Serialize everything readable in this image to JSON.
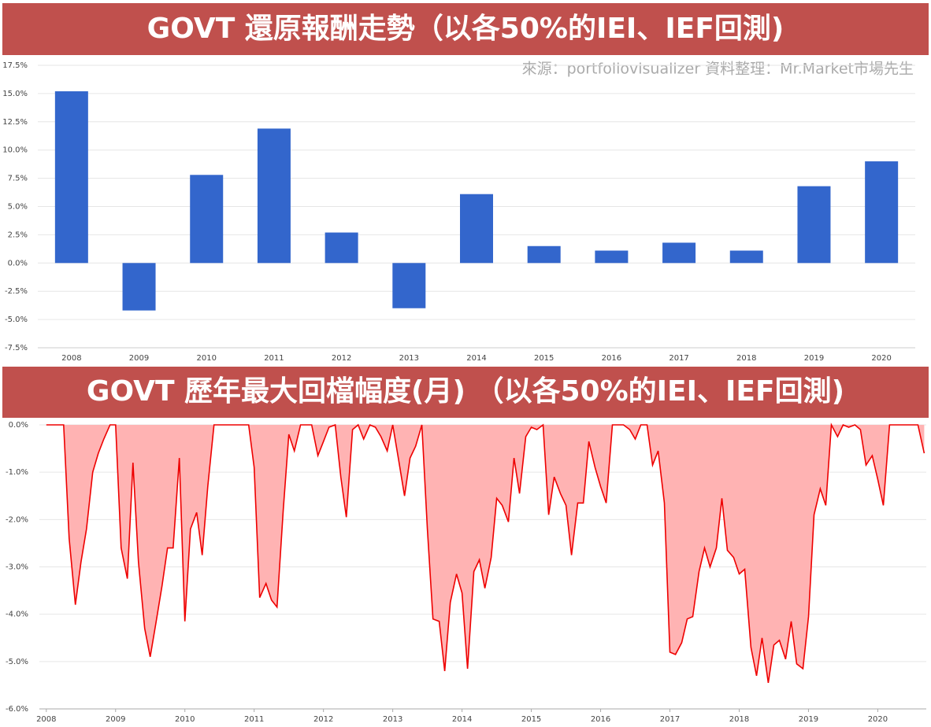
{
  "chart_data": [
    {
      "type": "bar",
      "title": "GOVT 還原報酬走勢（以各50%的IEI、IEF回測)",
      "subtitle": "來源：portfoliovisualizer 資料整理：Mr.Market市場先生",
      "categories": [
        "2008",
        "2009",
        "2010",
        "2011",
        "2012",
        "2013",
        "2014",
        "2015",
        "2016",
        "2017",
        "2018",
        "2019",
        "2020"
      ],
      "values": [
        15.2,
        -4.2,
        7.8,
        11.9,
        2.7,
        -4.0,
        6.1,
        1.5,
        1.1,
        1.8,
        1.1,
        6.8,
        9.0
      ],
      "color": "#3366cc",
      "ylim": [
        -7.5,
        17.5
      ],
      "yticks": [
        {
          "value": -7.5,
          "label": "-7.5%"
        },
        {
          "value": -5,
          "label": "-5.0%"
        },
        {
          "value": -2.5,
          "label": "-2.5%"
        },
        {
          "value": 0,
          "label": "0.0%"
        },
        {
          "value": 2.5,
          "label": "2.5%"
        },
        {
          "value": 5,
          "label": "5.0%"
        },
        {
          "value": 7.5,
          "label": "7.5%"
        },
        {
          "value": 10,
          "label": "10.0%"
        },
        {
          "value": 12.5,
          "label": "12.5%"
        },
        {
          "value": 15,
          "label": "15.0%"
        },
        {
          "value": 17.5,
          "label": "17.5%"
        }
      ],
      "grid": true
    },
    {
      "type": "area",
      "title": "GOVT 歷年最大回檔幅度(月) （以各50%的IEI、IEF回測)",
      "x": [
        2008.0,
        2008.08,
        2008.17,
        2008.25,
        2008.33,
        2008.42,
        2008.5,
        2008.58,
        2008.67,
        2008.75,
        2008.83,
        2008.92,
        2009.0,
        2009.08,
        2009.17,
        2009.25,
        2009.33,
        2009.42,
        2009.5,
        2009.58,
        2009.67,
        2009.75,
        2009.83,
        2009.92,
        2010.0,
        2010.08,
        2010.17,
        2010.25,
        2010.33,
        2010.42,
        2010.5,
        2010.58,
        2010.67,
        2010.75,
        2010.83,
        2010.92,
        2011.0,
        2011.08,
        2011.17,
        2011.25,
        2011.33,
        2011.42,
        2011.5,
        2011.58,
        2011.67,
        2011.75,
        2011.83,
        2011.92,
        2012.0,
        2012.08,
        2012.17,
        2012.25,
        2012.33,
        2012.42,
        2012.5,
        2012.58,
        2012.67,
        2012.75,
        2012.83,
        2012.92,
        2013.0,
        2013.08,
        2013.17,
        2013.25,
        2013.33,
        2013.42,
        2013.5,
        2013.58,
        2013.67,
        2013.75,
        2013.83,
        2013.92,
        2014.0,
        2014.08,
        2014.17,
        2014.25,
        2014.33,
        2014.42,
        2014.5,
        2014.58,
        2014.67,
        2014.75,
        2014.83,
        2014.92,
        2015.0,
        2015.08,
        2015.17,
        2015.25,
        2015.33,
        2015.42,
        2015.5,
        2015.58,
        2015.67,
        2015.75,
        2015.83,
        2015.92,
        2016.0,
        2016.08,
        2016.17,
        2016.25,
        2016.33,
        2016.42,
        2016.5,
        2016.58,
        2016.67,
        2016.75,
        2016.83,
        2016.92,
        2017.0,
        2017.08,
        2017.17,
        2017.25,
        2017.33,
        2017.42,
        2017.5,
        2017.58,
        2017.67,
        2017.75,
        2017.83,
        2017.92,
        2018.0,
        2018.08,
        2018.17,
        2018.25,
        2018.33,
        2018.42,
        2018.5,
        2018.58,
        2018.67,
        2018.75,
        2018.83,
        2018.92,
        2019.0,
        2019.08,
        2019.17,
        2019.25,
        2019.33,
        2019.42,
        2019.5,
        2019.58,
        2019.67,
        2019.75,
        2019.83,
        2019.92,
        2020.0,
        2020.08,
        2020.17,
        2020.25,
        2020.33,
        2020.42,
        2020.5,
        2020.58,
        2020.67
      ],
      "series": [
        {
          "color": "#ee0000",
          "fill": "#ffb3b3",
          "values": [
            0,
            0,
            0,
            0,
            -2.4,
            -3.8,
            -2.9,
            -2.2,
            -1.0,
            -0.6,
            -0.3,
            0,
            0,
            -2.6,
            -3.25,
            -0.8,
            -2.9,
            -4.3,
            -4.9,
            -4.2,
            -3.4,
            -2.6,
            -2.6,
            -0.7,
            -4.15,
            -2.2,
            -1.85,
            -2.75,
            -1.3,
            0,
            0,
            0,
            0,
            0,
            0,
            0,
            -0.9,
            -3.65,
            -3.35,
            -3.7,
            -3.85,
            -1.8,
            -0.2,
            -0.55,
            0,
            0,
            0,
            -0.65,
            -0.35,
            -0.05,
            0,
            -1.1,
            -1.95,
            -0.1,
            0,
            -0.3,
            0,
            -0.05,
            -0.25,
            -0.55,
            0,
            -0.7,
            -1.5,
            -0.7,
            -0.45,
            0,
            -2.2,
            -4.1,
            -4.15,
            -5.2,
            -3.75,
            -3.15,
            -3.55,
            -5.15,
            -3.1,
            -2.85,
            -3.45,
            -2.8,
            -1.55,
            -1.7,
            -2.05,
            -0.7,
            -1.45,
            -0.25,
            -0.05,
            -0.1,
            0,
            -1.9,
            -1.1,
            -1.45,
            -1.7,
            -2.75,
            -1.65,
            -1.65,
            -0.35,
            -0.9,
            -1.3,
            -1.65,
            0,
            0,
            0,
            -0.1,
            -0.3,
            0,
            0,
            -0.85,
            -0.55,
            -1.65,
            -4.8,
            -4.85,
            -4.6,
            -4.1,
            -4.05,
            -3.1,
            -2.6,
            -3.0,
            -2.6,
            -1.55,
            -2.65,
            -2.8,
            -3.15,
            -3.05,
            -4.7,
            -5.3,
            -4.5,
            -5.45,
            -4.65,
            -4.55,
            -4.95,
            -4.15,
            -5.05,
            -5.15,
            -4.05,
            -1.9,
            -1.35,
            -1.7,
            0,
            -0.25,
            0,
            -0.05,
            0,
            -0.1,
            -0.85,
            -0.65,
            -1.15,
            -1.7,
            0,
            0,
            0,
            0,
            0,
            0,
            -0.6
          ]
        }
      ],
      "xlim": [
        2007.9,
        2020.7
      ],
      "xticks": [
        2008,
        2009,
        2010,
        2011,
        2012,
        2013,
        2014,
        2015,
        2016,
        2017,
        2018,
        2019,
        2020
      ],
      "ylim": [
        -6,
        0
      ],
      "yticks": [
        {
          "value": -6,
          "label": "-6.0%"
        },
        {
          "value": -5,
          "label": "-5.0%"
        },
        {
          "value": -4,
          "label": "-4.0%"
        },
        {
          "value": -3,
          "label": "-3.0%"
        },
        {
          "value": -2,
          "label": "-2.0%"
        },
        {
          "value": -1,
          "label": "-1.0%"
        },
        {
          "value": 0,
          "label": "0.0%"
        }
      ],
      "grid": true
    }
  ]
}
